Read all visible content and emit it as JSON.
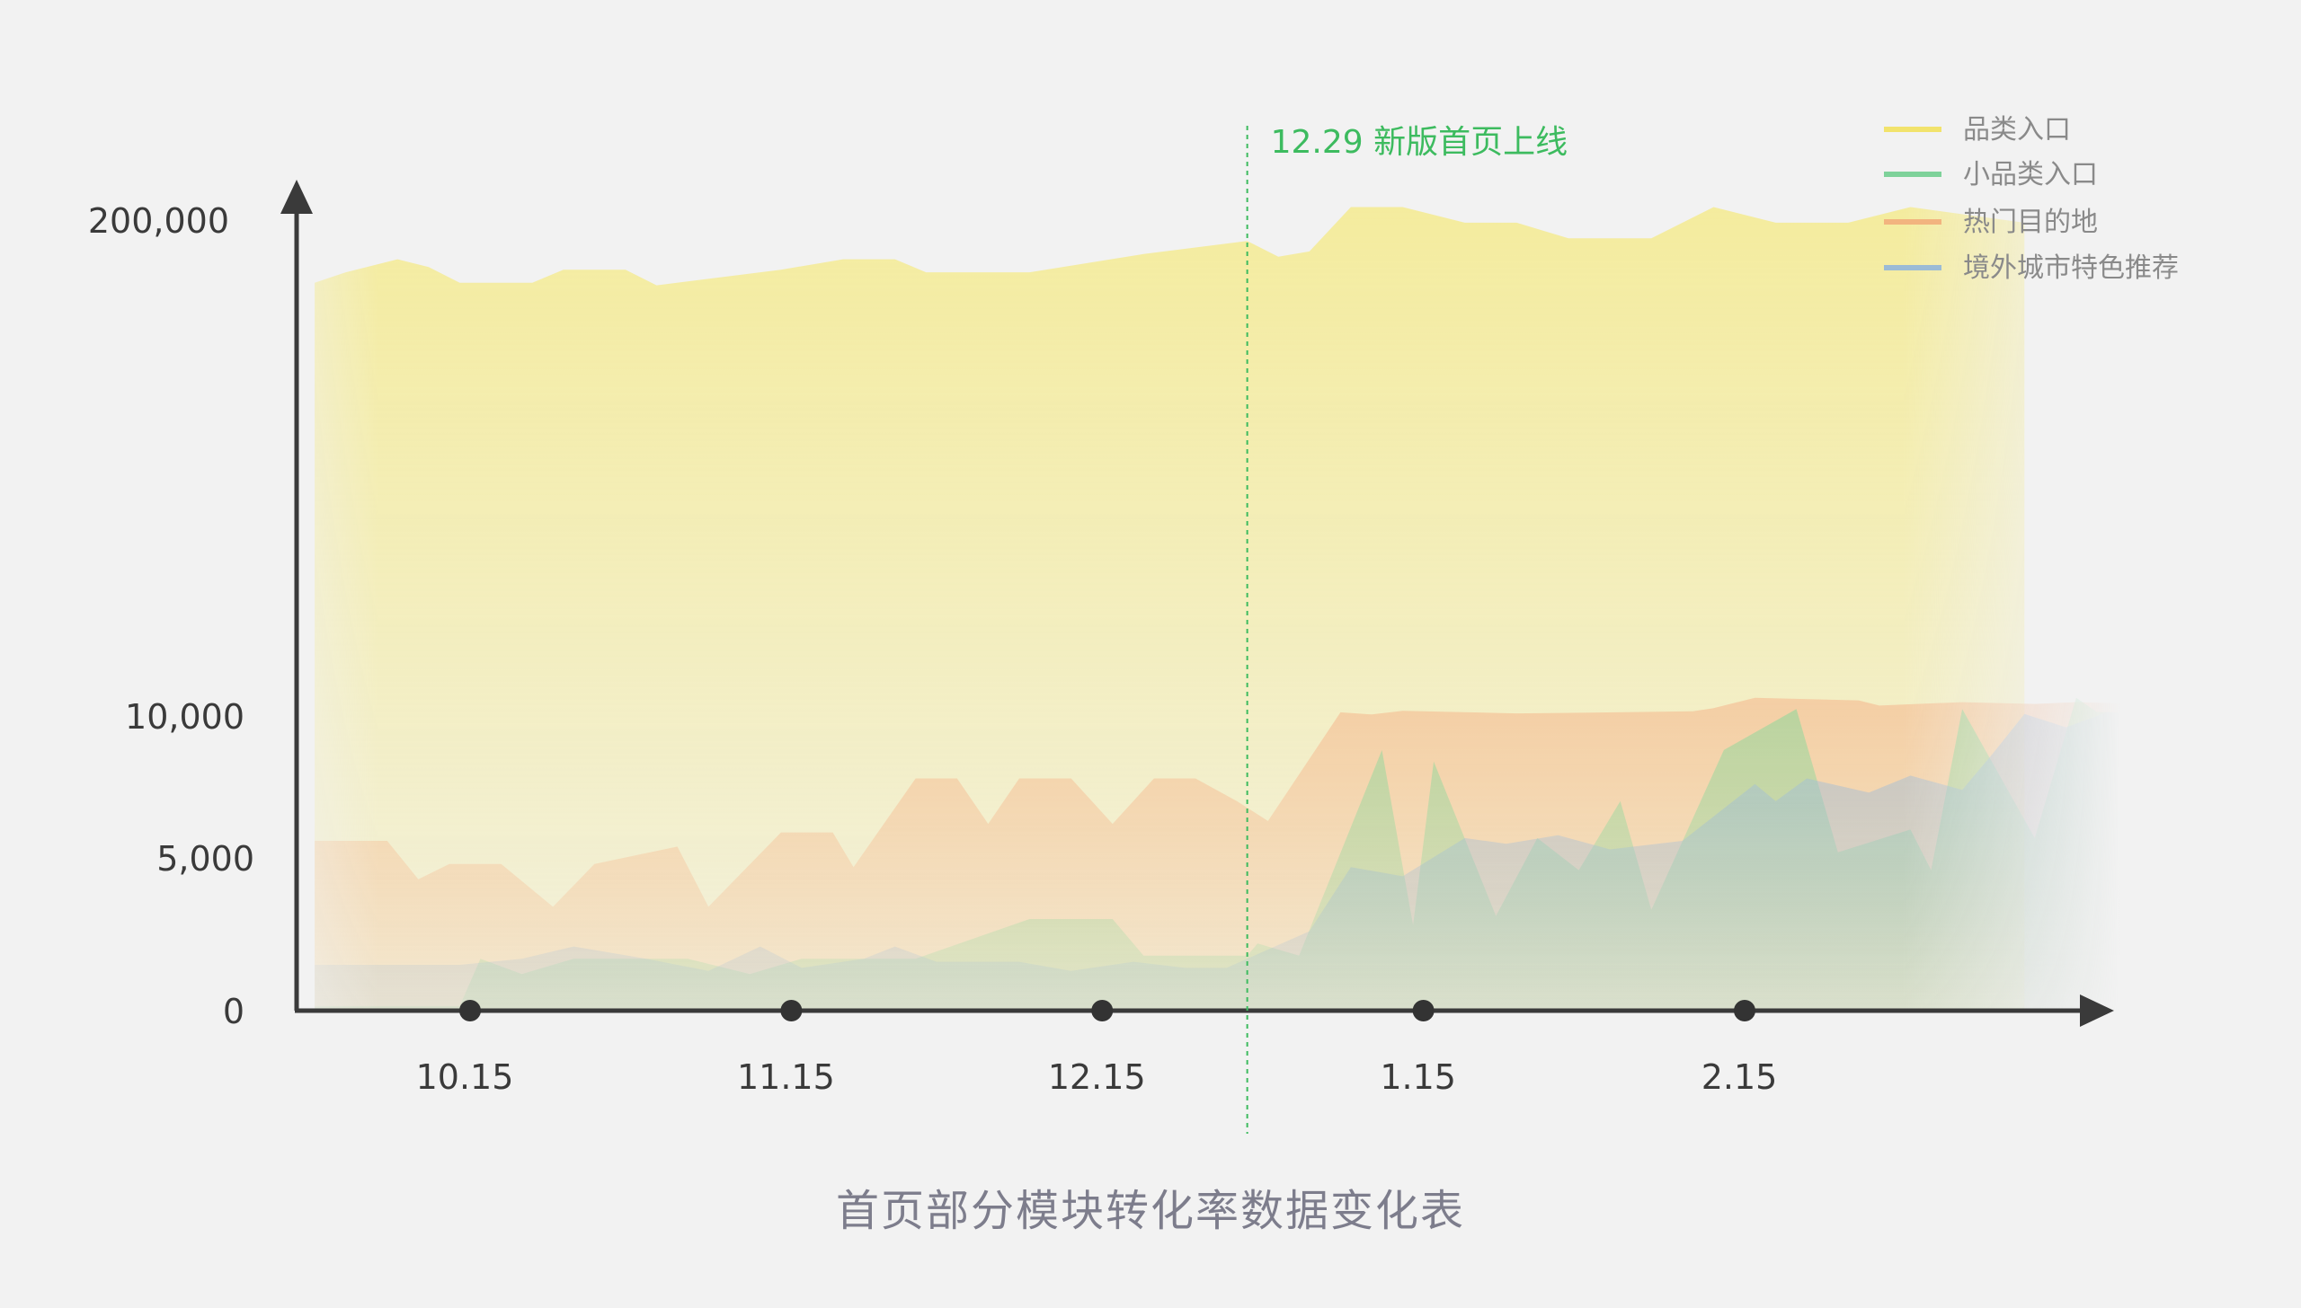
{
  "chart_data": {
    "type": "area",
    "title": "首页部分模块转化率数据变化表",
    "y_ticks": [
      {
        "label": "0",
        "value": 0
      },
      {
        "label": "5,000",
        "value": 5000
      },
      {
        "label": "10,000",
        "value": 10000
      },
      {
        "label": "200,000",
        "value": 200000
      }
    ],
    "y_scale": "broken",
    "x_ticks": [
      {
        "label": "10.15",
        "date": "2018-10-15"
      },
      {
        "label": "11.15",
        "date": "2018-11-15"
      },
      {
        "label": "12.15",
        "date": "2018-12-15"
      },
      {
        "label": "1.15",
        "date": "2019-01-15"
      },
      {
        "label": "2.15",
        "date": "2019-02-15"
      }
    ],
    "annotation": {
      "label": "12.29 新版首页上线",
      "date": "2018-12-29"
    },
    "legend_position": "top-right",
    "series": [
      {
        "name": "品类入口",
        "color": "#f5e97a",
        "points": [
          [
            "2018-09-30",
            176000
          ],
          [
            "2018-10-03",
            180000
          ],
          [
            "2018-10-08",
            185000
          ],
          [
            "2018-10-11",
            182000
          ],
          [
            "2018-10-14",
            176000
          ],
          [
            "2018-10-21",
            176000
          ],
          [
            "2018-10-24",
            181000
          ],
          [
            "2018-10-30",
            181000
          ],
          [
            "2018-11-02",
            175000
          ],
          [
            "2018-11-14",
            181000
          ],
          [
            "2018-11-20",
            185000
          ],
          [
            "2018-11-25",
            185000
          ],
          [
            "2018-11-28",
            180000
          ],
          [
            "2018-12-08",
            180000
          ],
          [
            "2018-12-19",
            187000
          ],
          [
            "2018-12-29",
            192000
          ],
          [
            "2019-01-01",
            186000
          ],
          [
            "2019-01-04",
            188000
          ],
          [
            "2019-01-08",
            205000
          ],
          [
            "2019-01-13",
            205000
          ],
          [
            "2019-01-19",
            199000
          ],
          [
            "2019-01-24",
            199000
          ],
          [
            "2019-01-29",
            193000
          ],
          [
            "2019-02-06",
            193000
          ],
          [
            "2019-02-12",
            205000
          ],
          [
            "2019-02-18",
            199000
          ],
          [
            "2019-02-25",
            199000
          ],
          [
            "2019-03-03",
            205000
          ],
          [
            "2019-03-14",
            199000
          ]
        ]
      },
      {
        "name": "小品类入口",
        "color": "#7cd899",
        "points": [
          [
            "2018-09-30",
            150
          ],
          [
            "2018-10-14",
            150
          ],
          [
            "2018-10-16",
            1700
          ],
          [
            "2018-10-20",
            1200
          ],
          [
            "2018-10-25",
            1700
          ],
          [
            "2018-11-05",
            1700
          ],
          [
            "2018-11-11",
            1200
          ],
          [
            "2018-11-16",
            1700
          ],
          [
            "2018-11-27",
            1700
          ],
          [
            "2018-12-08",
            3000
          ],
          [
            "2018-12-16",
            3000
          ],
          [
            "2018-12-19",
            1800
          ],
          [
            "2018-12-29",
            1800
          ],
          [
            "2018-12-30",
            2200
          ],
          [
            "2019-01-03",
            1800
          ],
          [
            "2019-01-11",
            8800
          ],
          [
            "2019-01-14",
            2800
          ],
          [
            "2019-01-16",
            8400
          ],
          [
            "2019-01-22",
            3100
          ],
          [
            "2019-01-26",
            5700
          ],
          [
            "2019-01-30",
            4600
          ],
          [
            "2019-02-03",
            7000
          ],
          [
            "2019-02-06",
            3300
          ],
          [
            "2019-02-13",
            8800
          ],
          [
            "2019-02-20",
            12700
          ],
          [
            "2019-02-24",
            5200
          ],
          [
            "2019-03-03",
            6000
          ],
          [
            "2019-03-05",
            4600
          ],
          [
            "2019-03-08",
            12700
          ],
          [
            "2019-03-15",
            5700
          ],
          [
            "2019-03-19",
            17000
          ],
          [
            "2019-03-21",
            11500
          ],
          [
            "2019-03-25",
            11500
          ]
        ]
      },
      {
        "name": "热门目的地",
        "color": "#f5b48a",
        "points": [
          [
            "2018-09-30",
            5600
          ],
          [
            "2018-10-07",
            5600
          ],
          [
            "2018-10-10",
            4300
          ],
          [
            "2018-10-13",
            4800
          ],
          [
            "2018-10-18",
            4800
          ],
          [
            "2018-10-23",
            3400
          ],
          [
            "2018-10-27",
            4800
          ],
          [
            "2018-11-04",
            5400
          ],
          [
            "2018-11-07",
            3400
          ],
          [
            "2018-11-14",
            5900
          ],
          [
            "2018-11-19",
            5900
          ],
          [
            "2018-11-21",
            4700
          ],
          [
            "2018-11-27",
            7800
          ],
          [
            "2018-12-01",
            7800
          ],
          [
            "2018-12-04",
            6200
          ],
          [
            "2018-12-07",
            7800
          ],
          [
            "2018-12-12",
            7800
          ],
          [
            "2018-12-16",
            6200
          ],
          [
            "2018-12-20",
            7800
          ],
          [
            "2018-12-24",
            7800
          ],
          [
            "2018-12-28",
            7000
          ],
          [
            "2018-12-31",
            6300
          ],
          [
            "2019-01-07",
            11400
          ],
          [
            "2019-01-10",
            10600
          ],
          [
            "2019-01-13",
            12000
          ],
          [
            "2019-01-24",
            11000
          ],
          [
            "2019-01-31",
            11300
          ],
          [
            "2019-02-10",
            11800
          ],
          [
            "2019-02-12",
            13000
          ],
          [
            "2019-02-16",
            17000
          ],
          [
            "2019-02-26",
            16000
          ],
          [
            "2019-02-28",
            14000
          ],
          [
            "2019-03-08",
            15300
          ],
          [
            "2019-03-15",
            14600
          ],
          [
            "2019-03-19",
            15300
          ],
          [
            "2019-03-25",
            14700
          ]
        ]
      },
      {
        "name": "境外城市特色推荐",
        "color": "#9dbbd9",
        "points": [
          [
            "2018-09-30",
            1500
          ],
          [
            "2018-10-14",
            1500
          ],
          [
            "2018-10-20",
            1700
          ],
          [
            "2018-10-25",
            2100
          ],
          [
            "2018-11-01",
            1700
          ],
          [
            "2018-11-07",
            1300
          ],
          [
            "2018-11-12",
            2100
          ],
          [
            "2018-11-16",
            1400
          ],
          [
            "2018-11-22",
            1700
          ],
          [
            "2018-11-25",
            2100
          ],
          [
            "2018-11-29",
            1600
          ],
          [
            "2018-12-07",
            1600
          ],
          [
            "2018-12-12",
            1300
          ],
          [
            "2018-12-18",
            1600
          ],
          [
            "2018-12-23",
            1400
          ],
          [
            "2018-12-27",
            1400
          ],
          [
            "2018-12-31",
            2000
          ],
          [
            "2019-01-04",
            2600
          ],
          [
            "2019-01-08",
            4700
          ],
          [
            "2019-01-13",
            4400
          ],
          [
            "2019-01-19",
            5700
          ],
          [
            "2019-01-23",
            5500
          ],
          [
            "2019-01-28",
            5800
          ],
          [
            "2019-02-02",
            5300
          ],
          [
            "2019-02-09",
            5600
          ],
          [
            "2019-02-16",
            7600
          ],
          [
            "2019-02-18",
            7000
          ],
          [
            "2019-02-21",
            7800
          ],
          [
            "2019-02-27",
            7300
          ],
          [
            "2019-03-03",
            7900
          ],
          [
            "2019-03-08",
            7400
          ],
          [
            "2019-03-11",
            8700
          ],
          [
            "2019-03-14",
            10800
          ],
          [
            "2019-03-18",
            9600
          ],
          [
            "2019-03-22",
            11400
          ],
          [
            "2019-03-25",
            10400
          ]
        ]
      }
    ]
  }
}
